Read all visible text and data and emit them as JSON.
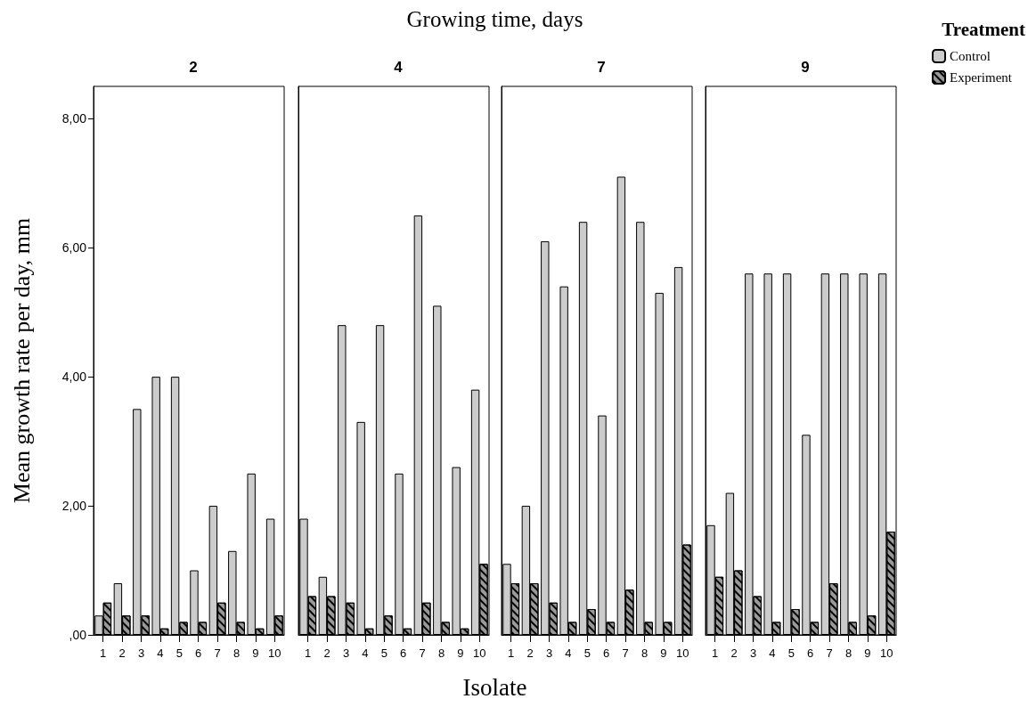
{
  "chart_data": [
    {
      "type": "bar",
      "title": "2",
      "annotations": [
        "Growing time, days"
      ],
      "ylabel": "Mean growth rate per day, mm",
      "categories": [
        "1",
        "2",
        "3",
        "4",
        "5",
        "6",
        "7",
        "8",
        "9",
        "10"
      ],
      "series": [
        {
          "color": "#cccccc",
          "values": [
            0.3,
            0.8,
            3.5,
            4.0,
            4.0,
            1.0,
            2.0,
            1.3,
            2.5,
            1.8
          ]
        },
        {
          "color": "#999999",
          "values": [
            0.5,
            0.3,
            0.3,
            0.1,
            0.2,
            0.2,
            0.5,
            0.2,
            0.1,
            0.3
          ]
        }
      ],
      "ylim": [
        0,
        8.5
      ],
      "yticks": [
        {
          "value": 0,
          "label": ",00"
        },
        {
          "value": 2,
          "label": "2,00"
        },
        {
          "value": 4,
          "label": "4,00"
        },
        {
          "value": 6,
          "label": "6,00"
        },
        {
          "value": 8,
          "label": "8,00"
        }
      ],
      "grid": false
    },
    {
      "type": "bar",
      "title": "4",
      "xlabel": "Isolate",
      "categories": [
        "1",
        "2",
        "3",
        "4",
        "5",
        "6",
        "7",
        "8",
        "9",
        "10"
      ],
      "series": [
        {
          "color": "#cccccc",
          "values": [
            1.8,
            0.9,
            4.8,
            3.3,
            4.8,
            2.5,
            6.5,
            5.1,
            2.6,
            3.8
          ]
        },
        {
          "color": "#999999",
          "values": [
            0.6,
            0.6,
            0.5,
            0.1,
            0.3,
            0.1,
            0.5,
            0.2,
            0.1,
            1.1
          ]
        }
      ],
      "ylim": [
        0,
        8.5
      ],
      "tick_labels": "x",
      "grid": false
    },
    {
      "type": "bar",
      "title": "7",
      "categories": [
        "1",
        "2",
        "3",
        "4",
        "5",
        "6",
        "7",
        "8",
        "9",
        "10"
      ],
      "series": [
        {
          "color": "#cccccc",
          "values": [
            1.1,
            2.0,
            6.1,
            5.4,
            6.4,
            3.4,
            7.1,
            6.4,
            5.3,
            5.7
          ]
        },
        {
          "color": "#999999",
          "values": [
            0.8,
            0.8,
            0.5,
            0.2,
            0.4,
            0.2,
            0.7,
            0.2,
            0.2,
            1.4
          ]
        }
      ],
      "ylim": [
        0,
        8.5
      ],
      "tick_labels": "x",
      "grid": false
    },
    {
      "type": "bar",
      "title": "9",
      "legend_title": "Treatment",
      "legend": "top right",
      "categories": [
        "1",
        "2",
        "3",
        "4",
        "5",
        "6",
        "7",
        "8",
        "9",
        "10"
      ],
      "series": [
        {
          "name": "Control",
          "color": "#cccccc",
          "values": [
            1.7,
            2.2,
            5.6,
            5.6,
            5.6,
            3.1,
            5.6,
            5.6,
            5.6,
            5.6
          ]
        },
        {
          "name": "Experiment",
          "color": "#999999",
          "values": [
            0.9,
            1.0,
            0.6,
            0.2,
            0.4,
            0.2,
            0.8,
            0.2,
            0.3,
            1.6
          ]
        }
      ],
      "ylim": [
        0,
        8.5
      ],
      "tick_labels": "x",
      "grid": false
    }
  ]
}
